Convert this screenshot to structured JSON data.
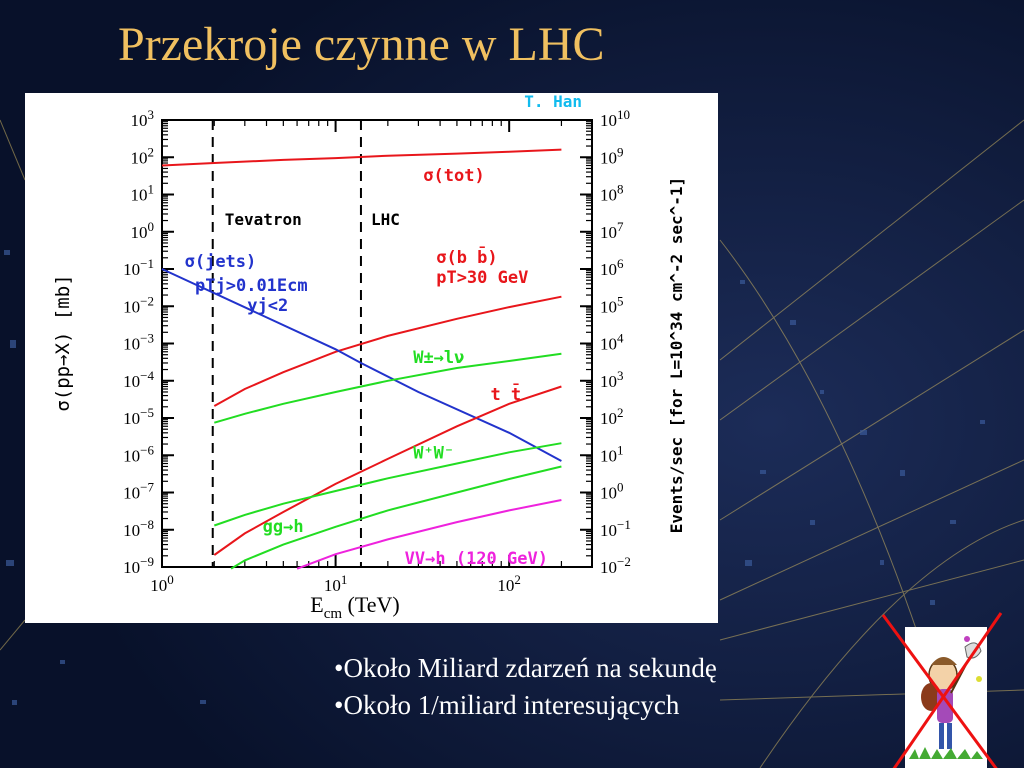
{
  "slide": {
    "title": "Przekroje czynne w LHC",
    "bullets": [
      "•Około Miliard zdarzeń na sekundę",
      "•Około 1/miliard interesujących"
    ]
  },
  "colors": {
    "background": "#0b1430",
    "title": "#f0c060",
    "red": "#e8161b",
    "blue": "#2233cc",
    "green": "#22dd22",
    "magenta": "#ee22dd",
    "cyan_credit": "#11bbee"
  },
  "chart_data": {
    "type": "line",
    "credit": "T. Han",
    "xlabel": "E",
    "xlabel_sub": "cm",
    "xlabel_unit": "(TeV)",
    "ylabel": "σ(pp→X) [mb]",
    "y2label": "Events/sec [for L=10^34 cm^-2 sec^-1]",
    "x_scale": "log",
    "y_scale": "log",
    "xlim": [
      1,
      300
    ],
    "ylim": [
      1e-09,
      1000
    ],
    "x_ticks": [
      {
        "value": 1,
        "label": "10",
        "exp": "0"
      },
      {
        "value": 10,
        "label": "10",
        "exp": "1"
      },
      {
        "value": 100,
        "label": "10",
        "exp": "2"
      }
    ],
    "y_ticks_left": [
      {
        "value": 1000,
        "label": "10",
        "exp": "3"
      },
      {
        "value": 100,
        "label": "10",
        "exp": "2"
      },
      {
        "value": 10,
        "label": "10",
        "exp": "1"
      },
      {
        "value": 1,
        "label": "10",
        "exp": "0"
      },
      {
        "value": 0.1,
        "label": "10",
        "exp": "−1"
      },
      {
        "value": 0.01,
        "label": "10",
        "exp": "−2"
      },
      {
        "value": 0.001,
        "label": "10",
        "exp": "−3"
      },
      {
        "value": 0.0001,
        "label": "10",
        "exp": "−4"
      },
      {
        "value": 1e-05,
        "label": "10",
        "exp": "−5"
      },
      {
        "value": 1e-06,
        "label": "10",
        "exp": "−6"
      },
      {
        "value": 1e-07,
        "label": "10",
        "exp": "−7"
      },
      {
        "value": 1e-08,
        "label": "10",
        "exp": "−8"
      },
      {
        "value": 1e-09,
        "label": "10",
        "exp": "−9"
      }
    ],
    "y_ticks_right": [
      {
        "value": 1000,
        "label": "10",
        "exp": "10"
      },
      {
        "value": 100,
        "label": "10",
        "exp": "9"
      },
      {
        "value": 10,
        "label": "10",
        "exp": "8"
      },
      {
        "value": 1,
        "label": "10",
        "exp": "7"
      },
      {
        "value": 0.1,
        "label": "10",
        "exp": "6"
      },
      {
        "value": 0.01,
        "label": "10",
        "exp": "5"
      },
      {
        "value": 0.001,
        "label": "10",
        "exp": "4"
      },
      {
        "value": 0.0001,
        "label": "10",
        "exp": "3"
      },
      {
        "value": 1e-05,
        "label": "10",
        "exp": "2"
      },
      {
        "value": 1e-06,
        "label": "10",
        "exp": "1"
      },
      {
        "value": 1e-07,
        "label": "10",
        "exp": "0"
      },
      {
        "value": 1e-08,
        "label": "10",
        "exp": "−1"
      },
      {
        "value": 1e-09,
        "label": "10",
        "exp": "−2"
      }
    ],
    "vlines": [
      {
        "x": 1.96,
        "label": "Tevatron"
      },
      {
        "x": 14,
        "label": "LHC"
      }
    ],
    "series": [
      {
        "key": "tot",
        "color": "#e8161b",
        "label": "σ(tot)",
        "points": [
          [
            1,
            60
          ],
          [
            2,
            70
          ],
          [
            5,
            85
          ],
          [
            10,
            95
          ],
          [
            20,
            110
          ],
          [
            50,
            125
          ],
          [
            100,
            140
          ],
          [
            200,
            160
          ]
        ]
      },
      {
        "key": "bb",
        "color": "#e8161b",
        "label": "σ(b b̄)",
        "label2": "pT>30 GeV",
        "points": [
          [
            2,
            2.1e-05
          ],
          [
            3,
            6e-05
          ],
          [
            5,
            0.00017
          ],
          [
            10,
            0.0006
          ],
          [
            20,
            0.0016
          ],
          [
            50,
            0.0046
          ],
          [
            100,
            0.0095
          ],
          [
            200,
            0.018
          ]
        ]
      },
      {
        "key": "jets",
        "color": "#2233cc",
        "label": "σ(jets)",
        "label2": "pTj>0.01Ecm",
        "label3": "yj<2",
        "points": [
          [
            1,
            0.1
          ],
          [
            10,
            0.0007
          ],
          [
            14,
            0.0003
          ],
          [
            30,
            5e-05
          ],
          [
            100,
            4e-06
          ],
          [
            200,
            7e-07
          ]
        ]
      },
      {
        "key": "w",
        "color": "#22dd22",
        "label": "W±→lν",
        "points": [
          [
            2,
            7.5e-06
          ],
          [
            3,
            1.3e-05
          ],
          [
            5,
            2.4e-05
          ],
          [
            10,
            5e-05
          ],
          [
            20,
            0.0001
          ],
          [
            50,
            0.00022
          ],
          [
            100,
            0.00034
          ],
          [
            200,
            0.00053
          ]
        ]
      },
      {
        "key": "tt",
        "color": "#e8161b",
        "label": "t t̄",
        "points": [
          [
            2,
            2.1e-09
          ],
          [
            3,
            8e-09
          ],
          [
            5,
            3e-08
          ],
          [
            10,
            1.7e-07
          ],
          [
            20,
            8e-07
          ],
          [
            50,
            6e-06
          ],
          [
            100,
            2.4e-05
          ],
          [
            200,
            7e-05
          ]
        ]
      },
      {
        "key": "ww",
        "color": "#22dd22",
        "label": "W⁺W⁻",
        "points": [
          [
            2,
            1.3e-08
          ],
          [
            3,
            2.5e-08
          ],
          [
            5,
            5e-08
          ],
          [
            10,
            1.1e-07
          ],
          [
            20,
            2.4e-07
          ],
          [
            50,
            6e-07
          ],
          [
            100,
            1.2e-06
          ],
          [
            200,
            2.1e-06
          ]
        ]
      },
      {
        "key": "ggh",
        "color": "#22dd22",
        "label": "gg→h",
        "points": [
          [
            2.5,
            9e-10
          ],
          [
            3,
            1.5e-09
          ],
          [
            5,
            4e-09
          ],
          [
            10,
            1.2e-08
          ],
          [
            20,
            3.3e-08
          ],
          [
            50,
            1e-07
          ],
          [
            100,
            2.3e-07
          ],
          [
            200,
            5e-07
          ]
        ]
      },
      {
        "key": "vvh",
        "color": "#ee22dd",
        "label": "VV→h (120 GeV)",
        "points": [
          [
            6,
            9e-10
          ],
          [
            10,
            2.2e-09
          ],
          [
            20,
            5.5e-09
          ],
          [
            50,
            1.6e-08
          ],
          [
            100,
            3.3e-08
          ],
          [
            200,
            6.3e-08
          ]
        ]
      }
    ]
  }
}
